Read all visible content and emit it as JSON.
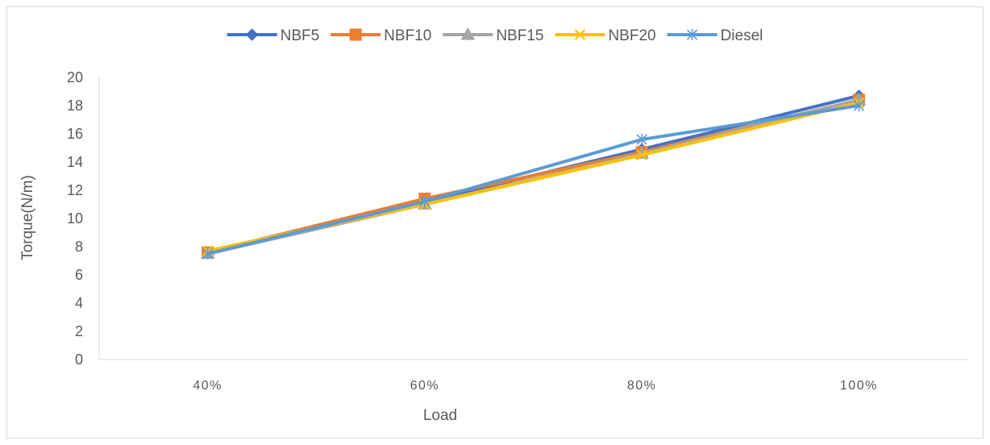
{
  "chart_data": {
    "type": "line",
    "title": "",
    "xlabel": "Load",
    "ylabel": "Torque(N/m)",
    "categories": [
      "40%",
      "60%",
      "80%",
      "100%"
    ],
    "ylim": [
      0,
      20
    ],
    "yticks": [
      "0",
      "2",
      "4",
      "6",
      "8",
      "10",
      "12",
      "14",
      "16",
      "18",
      "20"
    ],
    "grid": false,
    "legend_position": "top",
    "series": [
      {
        "name": "NBF5",
        "values": [
          7.6,
          11.2,
          14.9,
          18.7
        ],
        "color": "#4472C4",
        "marker": "diamond"
      },
      {
        "name": "NBF10",
        "values": [
          7.6,
          11.4,
          14.7,
          18.4
        ],
        "color": "#ED7D31",
        "marker": "square"
      },
      {
        "name": "NBF15",
        "values": [
          7.5,
          11.0,
          14.6,
          18.4
        ],
        "color": "#A5A5A5",
        "marker": "triangle"
      },
      {
        "name": "NBF20",
        "values": [
          7.7,
          11.0,
          14.5,
          18.2
        ],
        "color": "#FFC000",
        "marker": "x"
      },
      {
        "name": "Diesel",
        "values": [
          7.5,
          11.2,
          15.6,
          18.0
        ],
        "color": "#5B9BD5",
        "marker": "asterisk"
      }
    ]
  }
}
